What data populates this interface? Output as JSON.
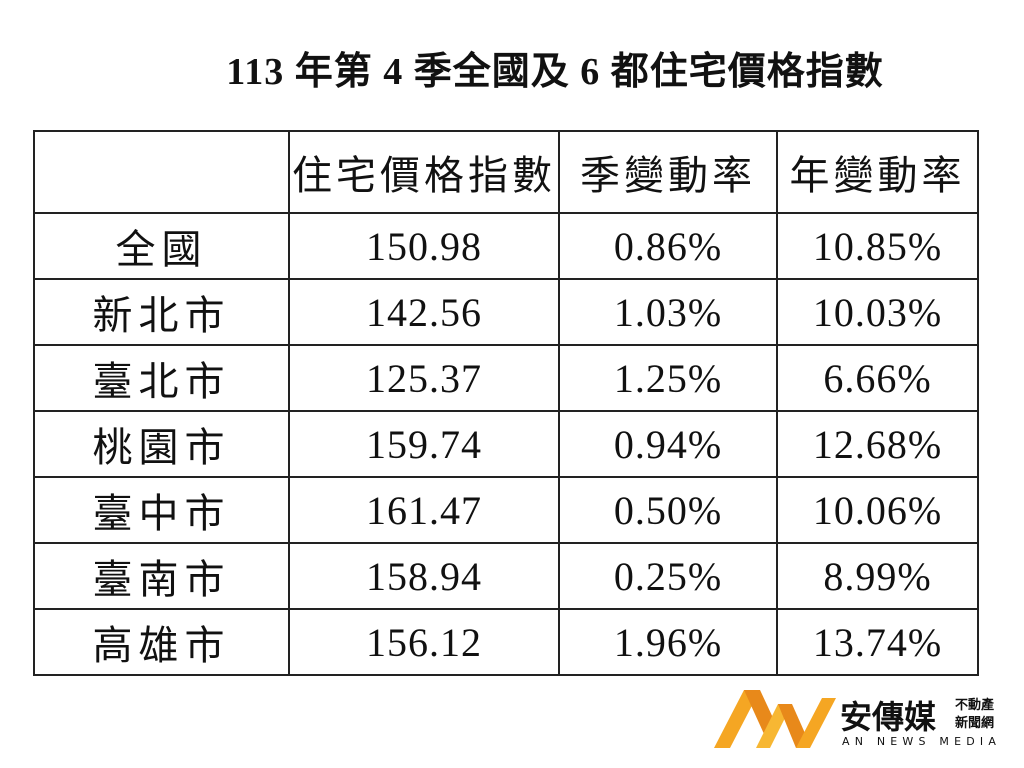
{
  "header": {
    "title": "113 年第 4 季全國及 6 都住宅價格指數"
  },
  "table": {
    "columns": [
      "住宅價格指數",
      "季變動率",
      "年變動率"
    ],
    "rows": [
      [
        "全國",
        "150.98",
        "0.86%",
        "10.85%"
      ],
      [
        "新北市",
        "142.56",
        "1.03%",
        "10.03%"
      ],
      [
        "臺北市",
        "125.37",
        "1.25%",
        "6.66%"
      ],
      [
        "桃園市",
        "159.74",
        "0.94%",
        "12.68%"
      ],
      [
        "臺中市",
        "161.47",
        "0.50%",
        "10.06%"
      ],
      [
        "臺南市",
        "158.94",
        "0.25%",
        "8.99%"
      ],
      [
        "高雄市",
        "156.12",
        "1.96%",
        "13.74%"
      ]
    ]
  },
  "logo": {
    "name": "安傳媒",
    "tagline": [
      "不動產",
      "新聞網"
    ],
    "english": "AN NEWS MEDIA"
  }
}
